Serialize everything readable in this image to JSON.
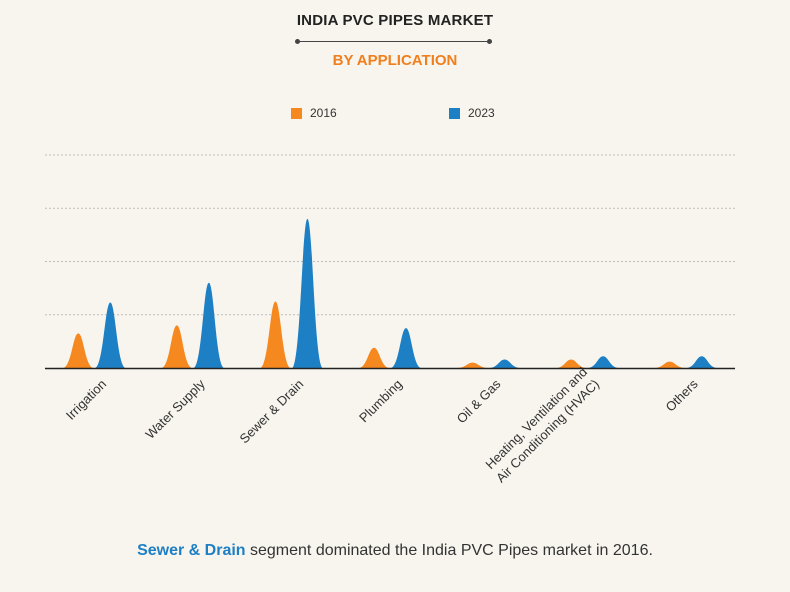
{
  "title": "INDIA PVC PIPES MARKET",
  "subtitle": "BY APPLICATION",
  "caption": {
    "highlight": "Sewer & Drain",
    "rest": " segment dominated the India PVC Pipes market in 2016."
  },
  "colors": {
    "s2016": "#f5891f",
    "s2023": "#1d7fc4"
  },
  "chart_data": {
    "type": "area",
    "categories": [
      "Irrigation",
      "Water Supply",
      "Sewer & Drain",
      "Plumbing",
      "Oil & Gas",
      "Heating, Ventilation and Air Conditioning (HVAC)",
      "Others"
    ],
    "category_lines": [
      [
        "Irrigation"
      ],
      [
        "Water Supply"
      ],
      [
        "Sewer & Drain"
      ],
      [
        "Plumbing"
      ],
      [
        "Oil & Gas"
      ],
      [
        "Heating, Ventilation and",
        "Air Conditioning (HVAC)"
      ],
      [
        "Others"
      ]
    ],
    "series": [
      {
        "name": "2016",
        "values": [
          0.65,
          0.8,
          1.25,
          0.38,
          0.1,
          0.16,
          0.12
        ]
      },
      {
        "name": "2023",
        "values": [
          1.23,
          1.6,
          2.8,
          0.75,
          0.16,
          0.22,
          0.22
        ]
      }
    ],
    "ylim": [
      0,
      4
    ],
    "grid": true,
    "legend": "top-center",
    "ylabel": "",
    "xlabel": ""
  }
}
